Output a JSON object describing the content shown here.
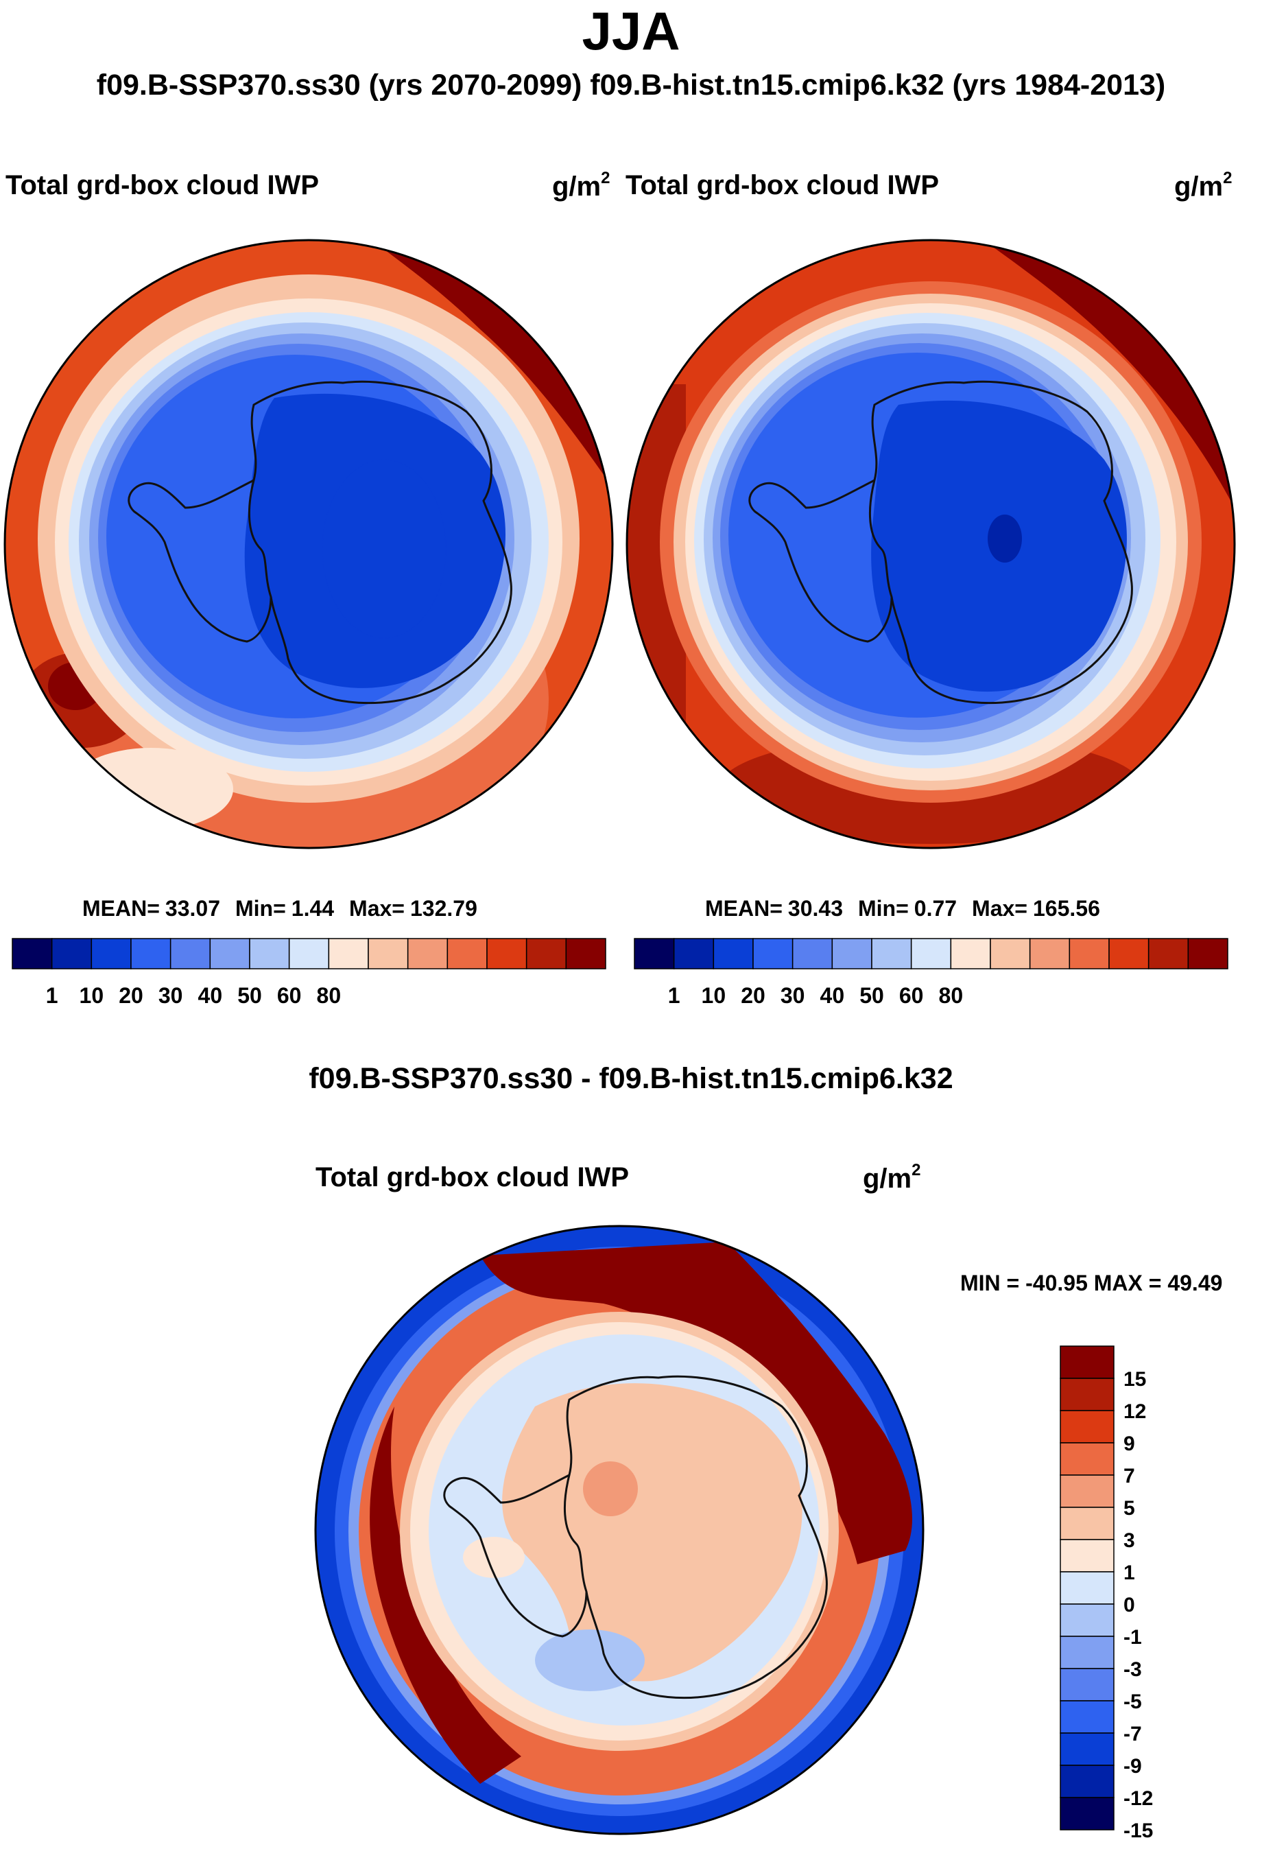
{
  "header": {
    "title": "JJA",
    "subtitle": "f09.B-SSP370.ss30 (yrs 2070-2099)  f09.B-hist.tn15.cmip6.k32 (yrs 1984-2013)"
  },
  "panels": [
    {
      "variable": "Total grd-box cloud IWP",
      "units_base": "g/m",
      "units_exp": "2",
      "mean_label": "MEAN=",
      "mean": "33.07",
      "min_label": "Min=",
      "min": "1.44",
      "max_label": "Max=",
      "max": "132.79"
    },
    {
      "variable": "Total grd-box cloud IWP",
      "units_base": "g/m",
      "units_exp": "2",
      "mean_label": "MEAN=",
      "mean": "30.43",
      "min_label": "Min=",
      "min": "0.77",
      "max_label": "Max=",
      "max": "165.56"
    }
  ],
  "difference": {
    "title": "f09.B-SSP370.ss30 - f09.B-hist.tn15.cmip6.k32",
    "variable": "Total grd-box cloud IWP",
    "units_base": "g/m",
    "units_exp": "2",
    "minmax_label": "MIN = -40.95 MAX =  49.49"
  },
  "chart_data": [
    {
      "type": "heatmap",
      "projection": "south polar stereographic",
      "title": "Total grd-box cloud IWP (f09.B-SSP370.ss30, yrs 2070-2099)",
      "units": "g/m2",
      "colorbar": {
        "orientation": "horizontal",
        "tick_labels": [
          "1",
          "10",
          "20",
          "30",
          "40",
          "50",
          "60",
          "80"
        ],
        "colors": [
          "#00005e",
          "#0022a8",
          "#0a3fd6",
          "#2e62f0",
          "#587ff0",
          "#80a0f2",
          "#aac4f6",
          "#d6e6fb",
          "#fde6d6",
          "#f8c4a6",
          "#f29a78",
          "#ec6a42",
          "#dc3a12",
          "#b01e08",
          "#860000"
        ]
      },
      "stats": {
        "mean": 33.07,
        "min": 1.44,
        "max": 132.79
      }
    },
    {
      "type": "heatmap",
      "projection": "south polar stereographic",
      "title": "Total grd-box cloud IWP (f09.B-hist.tn15.cmip6.k32, yrs 1984-2013)",
      "units": "g/m2",
      "colorbar": {
        "orientation": "horizontal",
        "tick_labels": [
          "1",
          "10",
          "20",
          "30",
          "40",
          "50",
          "60",
          "80"
        ],
        "colors": [
          "#00005e",
          "#0022a8",
          "#0a3fd6",
          "#2e62f0",
          "#587ff0",
          "#80a0f2",
          "#aac4f6",
          "#d6e6fb",
          "#fde6d6",
          "#f8c4a6",
          "#f29a78",
          "#ec6a42",
          "#dc3a12",
          "#b01e08",
          "#860000"
        ]
      },
      "stats": {
        "mean": 30.43,
        "min": 0.77,
        "max": 165.56
      }
    },
    {
      "type": "heatmap",
      "projection": "south polar stereographic",
      "title": "f09.B-SSP370.ss30 - f09.B-hist.tn15.cmip6.k32",
      "units": "g/m2",
      "colorbar": {
        "orientation": "vertical",
        "tick_labels": [
          "15",
          "12",
          "9",
          "7",
          "5",
          "3",
          "1",
          "0",
          "-1",
          "-3",
          "-5",
          "-7",
          "-9",
          "-12",
          "-15"
        ],
        "colors": [
          "#860000",
          "#b01e08",
          "#dc3a12",
          "#ec6a42",
          "#f29a78",
          "#f8c4a6",
          "#fde6d6",
          "#d6e6fb",
          "#aac4f6",
          "#80a0f2",
          "#587ff0",
          "#2e62f0",
          "#0a3fd6",
          "#0022a8",
          "#00005e"
        ]
      },
      "stats": {
        "min": -40.95,
        "max": 49.49
      }
    }
  ]
}
